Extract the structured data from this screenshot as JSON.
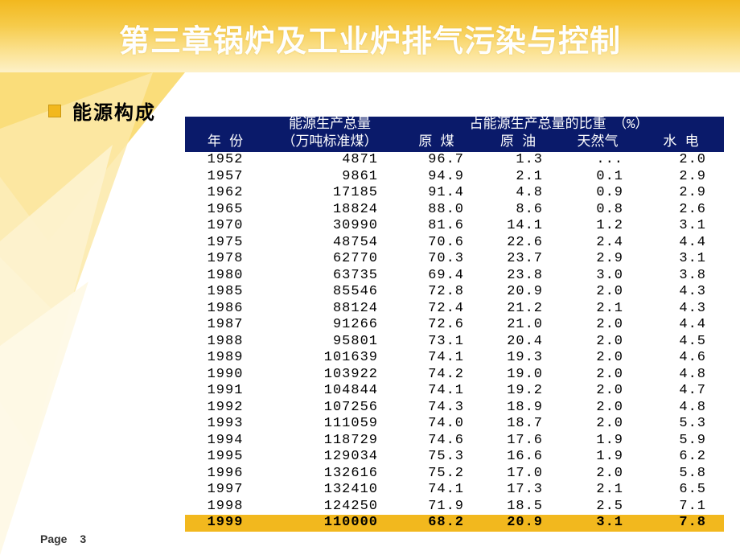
{
  "title": "第三章锅炉及工业炉排气污染与控制",
  "bullet_label": "能源构成",
  "page_label": "Page",
  "page_number": "3",
  "colors": {
    "accent": "#f2b81e",
    "header_bg": "#0a1a6a",
    "header_fg": "#ffffff",
    "row_bg": "#ffffff",
    "last_row_bg": "#f2b81e",
    "text": "#000000"
  },
  "table": {
    "header1": {
      "year": "",
      "total": "能源生产总量",
      "share_group": "占能源生产总量的比重　（%）"
    },
    "header2": {
      "year": "年 份",
      "total": "（万吨标准煤）",
      "coal": "原 煤",
      "oil": "原 油",
      "gas": "天然气",
      "hydro": "水 电"
    },
    "rows": [
      {
        "year": "1952",
        "total": "4871",
        "coal": "96.7",
        "oil": "1.3",
        "gas": "...",
        "hydro": "2.0"
      },
      {
        "year": "1957",
        "total": "9861",
        "coal": "94.9",
        "oil": "2.1",
        "gas": "0.1",
        "hydro": "2.9"
      },
      {
        "year": "1962",
        "total": "17185",
        "coal": "91.4",
        "oil": "4.8",
        "gas": "0.9",
        "hydro": "2.9"
      },
      {
        "year": "1965",
        "total": "18824",
        "coal": "88.0",
        "oil": "8.6",
        "gas": "0.8",
        "hydro": "2.6"
      },
      {
        "year": "1970",
        "total": "30990",
        "coal": "81.6",
        "oil": "14.1",
        "gas": "1.2",
        "hydro": "3.1"
      },
      {
        "year": "1975",
        "total": "48754",
        "coal": "70.6",
        "oil": "22.6",
        "gas": "2.4",
        "hydro": "4.4"
      },
      {
        "year": "1978",
        "total": "62770",
        "coal": "70.3",
        "oil": "23.7",
        "gas": "2.9",
        "hydro": "3.1"
      },
      {
        "year": "1980",
        "total": "63735",
        "coal": "69.4",
        "oil": "23.8",
        "gas": "3.0",
        "hydro": "3.8"
      },
      {
        "year": "1985",
        "total": "85546",
        "coal": "72.8",
        "oil": "20.9",
        "gas": "2.0",
        "hydro": "4.3"
      },
      {
        "year": "1986",
        "total": "88124",
        "coal": "72.4",
        "oil": "21.2",
        "gas": "2.1",
        "hydro": "4.3"
      },
      {
        "year": "1987",
        "total": "91266",
        "coal": "72.6",
        "oil": "21.0",
        "gas": "2.0",
        "hydro": "4.4"
      },
      {
        "year": "1988",
        "total": "95801",
        "coal": "73.1",
        "oil": "20.4",
        "gas": "2.0",
        "hydro": "4.5"
      },
      {
        "year": "1989",
        "total": "101639",
        "coal": "74.1",
        "oil": "19.3",
        "gas": "2.0",
        "hydro": "4.6"
      },
      {
        "year": "1990",
        "total": "103922",
        "coal": "74.2",
        "oil": "19.0",
        "gas": "2.0",
        "hydro": "4.8"
      },
      {
        "year": "1991",
        "total": "104844",
        "coal": "74.1",
        "oil": "19.2",
        "gas": "2.0",
        "hydro": "4.7"
      },
      {
        "year": "1992",
        "total": "107256",
        "coal": "74.3",
        "oil": "18.9",
        "gas": "2.0",
        "hydro": "4.8"
      },
      {
        "year": "1993",
        "total": "111059",
        "coal": "74.0",
        "oil": "18.7",
        "gas": "2.0",
        "hydro": "5.3"
      },
      {
        "year": "1994",
        "total": "118729",
        "coal": "74.6",
        "oil": "17.6",
        "gas": "1.9",
        "hydro": "5.9"
      },
      {
        "year": "1995",
        "total": "129034",
        "coal": "75.3",
        "oil": "16.6",
        "gas": "1.9",
        "hydro": "6.2"
      },
      {
        "year": "1996",
        "total": "132616",
        "coal": "75.2",
        "oil": "17.0",
        "gas": "2.0",
        "hydro": "5.8"
      },
      {
        "year": "1997",
        "total": "132410",
        "coal": "74.1",
        "oil": "17.3",
        "gas": "2.1",
        "hydro": "6.5"
      },
      {
        "year": "1998",
        "total": "124250",
        "coal": "71.9",
        "oil": "18.5",
        "gas": "2.5",
        "hydro": "7.1"
      },
      {
        "year": "1999",
        "total": "110000",
        "coal": "68.2",
        "oil": "20.9",
        "gas": "3.1",
        "hydro": "7.8"
      }
    ]
  }
}
